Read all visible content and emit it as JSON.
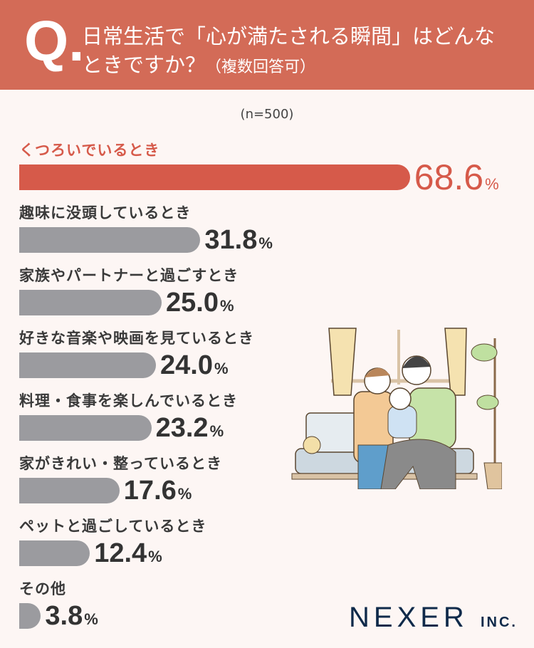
{
  "header": {
    "q_mark": "Q.",
    "line1": "日常生活で「心が満たされる瞬間」はどんな",
    "line2": "ときですか？",
    "line2_note": "（複数回答可）"
  },
  "sample": "(n=500)",
  "colors": {
    "header": "#d36b57",
    "highlight": "#d65a4a",
    "bar": "#9b9b9f",
    "background": "#fdf6f4"
  },
  "chart_data": {
    "type": "bar",
    "orientation": "horizontal",
    "categories": [
      "くつろいでいるとき",
      "趣味に没頭しているとき",
      "家族やパートナーと過ごすとき",
      "好きな音楽や映画を見ているとき",
      "料理・食事を楽しんでいるとき",
      "家がきれい・整っているとき",
      "ペットと過ごしているとき",
      "その他"
    ],
    "values": [
      68.6,
      31.8,
      25.0,
      24.0,
      23.2,
      17.6,
      12.4,
      3.8
    ],
    "labels": [
      "68.6",
      "31.8",
      "25.0",
      "24.0",
      "23.2",
      "17.6",
      "12.4",
      "3.8"
    ],
    "unit": "%",
    "highlight_index": 0
  },
  "logo": {
    "name": "NEXER",
    "suffix": "INC."
  }
}
